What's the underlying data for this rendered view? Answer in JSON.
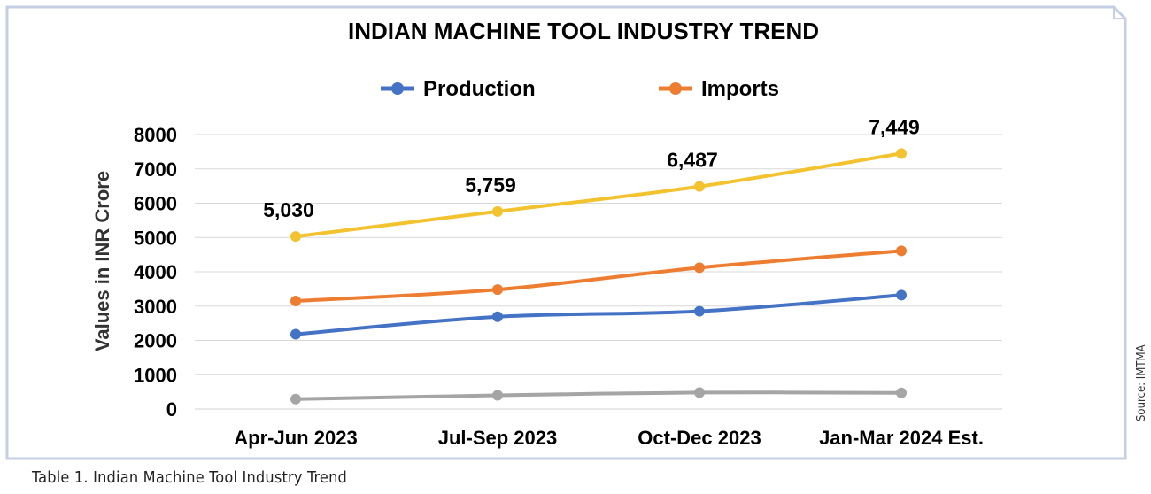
{
  "caption": "Table 1. Indian Machine Tool Industry Trend",
  "source": "Source: IMTMA",
  "colors": {
    "production": "#4472c4",
    "imports": "#ed7d31",
    "consumption": "#f3c22f",
    "exports": "#a5a5a5",
    "frame": "#c5cfe4"
  },
  "chart_data": {
    "type": "line",
    "title": "INDIAN MACHINE TOOL INDUSTRY TREND",
    "xlabel": "",
    "ylabel": "Values in INR Crore",
    "categories": [
      "Apr-Jun 2023",
      "Jul-Sep 2023",
      "Oct-Dec 2023",
      "Jan-Mar 2024 Est."
    ],
    "ylim": [
      0,
      8000
    ],
    "yticks": [
      "8000",
      "7000",
      "6000",
      "5000",
      "4000",
      "3000",
      "2000",
      "1000",
      "0"
    ],
    "grid": true,
    "legend_position": "top",
    "series": [
      {
        "name": "",
        "color": "#f3c22f",
        "values": [
          5030,
          5759,
          6487,
          7449
        ],
        "data_labels": [
          "5,030",
          "5,759",
          "6,487",
          "7,449"
        ]
      },
      {
        "name": "Imports",
        "color": "#ed7d31",
        "values": [
          3150,
          3480,
          4120,
          4610
        ],
        "data_labels": []
      },
      {
        "name": "Production",
        "color": "#4472c4",
        "values": [
          2180,
          2690,
          2850,
          3320
        ],
        "data_labels": []
      },
      {
        "name": "",
        "color": "#a5a5a5",
        "values": [
          290,
          400,
          480,
          470
        ],
        "data_labels": []
      }
    ],
    "legend": [
      {
        "name": "Production",
        "color": "#4472c4"
      },
      {
        "name": "Imports",
        "color": "#ed7d31"
      }
    ]
  }
}
